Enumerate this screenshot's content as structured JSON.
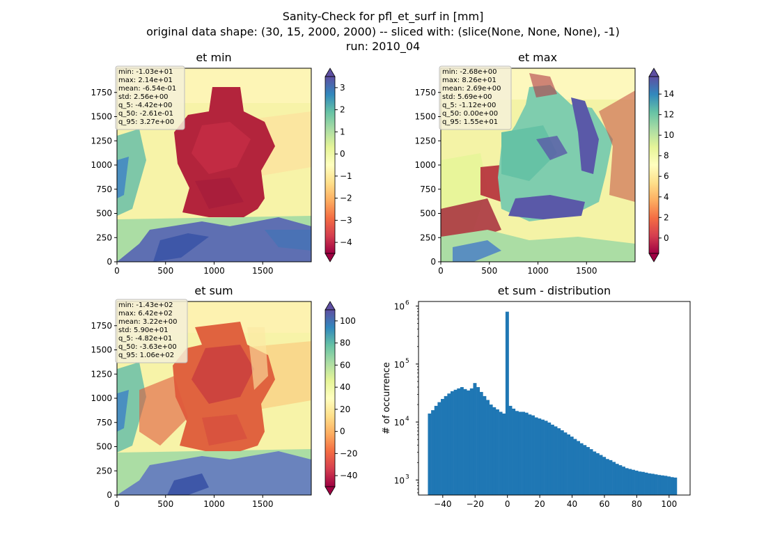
{
  "figure": {
    "title_lines": [
      "Sanity-Check for pfl_et_surf in [mm]",
      "original data shape: (30, 15, 2000, 2000) -- sliced with: (slice(None, None, None), -1)",
      "run: 2010_04"
    ]
  },
  "chart_data": [
    {
      "type": "heatmap",
      "title": "et min",
      "xlim": [
        0,
        2000
      ],
      "ylim": [
        0,
        2000
      ],
      "x_ticks": [
        "0",
        "500",
        "1000",
        "1500"
      ],
      "y_ticks": [
        "0",
        "250",
        "500",
        "750",
        "1000",
        "1250",
        "1500",
        "1750"
      ],
      "colormap": "Spectral",
      "colorbar": {
        "range": [
          -4.5,
          3.5
        ],
        "ticks": [
          "3",
          "2",
          "1",
          "0",
          "−1",
          "−2",
          "−3",
          "−4"
        ],
        "tick_values": [
          3,
          2,
          1,
          0,
          -1,
          -2,
          -3,
          -4
        ],
        "extend": "both"
      },
      "stats": [
        "min: -1.03e+01",
        "max: 2.14e+01",
        "mean: -6.54e-01",
        "std: 2.56e+00",
        "q_5: -4.42e+00",
        "q_50: -2.61e-01",
        "q_95: 3.27e+00"
      ]
    },
    {
      "type": "heatmap",
      "title": "et max",
      "xlim": [
        0,
        2000
      ],
      "ylim": [
        0,
        2000
      ],
      "x_ticks": [
        "0",
        "500",
        "1000",
        "1500"
      ],
      "y_ticks": [
        "0",
        "250",
        "500",
        "750",
        "1000",
        "1250",
        "1500",
        "1750"
      ],
      "colormap": "Spectral",
      "colorbar": {
        "range": [
          -1.5,
          15.7
        ],
        "ticks": [
          "14",
          "12",
          "10",
          "8",
          "6",
          "4",
          "2",
          "0"
        ],
        "tick_values": [
          14,
          12,
          10,
          8,
          6,
          4,
          2,
          0
        ],
        "extend": "both"
      },
      "stats": [
        "min: -2.68e+00",
        "max: 8.26e+01",
        "mean: 2.69e+00",
        "std: 5.69e+00",
        "q_5: -1.12e+00",
        "q_50: 0.00e+00",
        "q_95: 1.55e+01"
      ]
    },
    {
      "type": "heatmap",
      "title": "et sum",
      "xlim": [
        0,
        2000
      ],
      "ylim": [
        0,
        2000
      ],
      "x_ticks": [
        "0",
        "500",
        "1000",
        "1500"
      ],
      "y_ticks": [
        "0",
        "250",
        "500",
        "750",
        "1000",
        "1250",
        "1500",
        "1750"
      ],
      "colormap": "Spectral",
      "colorbar": {
        "range": [
          -50,
          110
        ],
        "ticks": [
          "100",
          "80",
          "60",
          "40",
          "20",
          "0",
          "−20",
          "−40"
        ],
        "tick_values": [
          100,
          80,
          60,
          40,
          20,
          0,
          -20,
          -40
        ],
        "extend": "both"
      },
      "stats": [
        "min: -1.43e+02",
        "max: 6.42e+02",
        "mean: 3.22e+00",
        "std: 5.90e+01",
        "q_5: -4.82e+01",
        "q_50: -3.63e+00",
        "q_95: 1.06e+02"
      ]
    },
    {
      "type": "bar",
      "title": "et sum - distribution",
      "xlabel": "",
      "ylabel": "# of occurrence",
      "xlim": [
        -55,
        113
      ],
      "ylog": true,
      "ylim": [
        550,
        1200000
      ],
      "x_ticks": [
        "−40",
        "−20",
        "0",
        "20",
        "40",
        "60",
        "80",
        "100"
      ],
      "x_tick_values": [
        -40,
        -20,
        0,
        20,
        40,
        60,
        80,
        100
      ],
      "y_ticks": [
        "10",
        "10",
        "10",
        "10"
      ],
      "y_tick_exponents": [
        "3",
        "4",
        "5",
        "6"
      ],
      "y_tick_values": [
        1000,
        10000,
        100000,
        1000000
      ],
      "bar_color": "#1f77b4",
      "bins": {
        "x": [
          -48.2,
          -46.2,
          -44.2,
          -42.2,
          -40.2,
          -38.2,
          -36.2,
          -34.2,
          -32.2,
          -30.2,
          -28.2,
          -26.2,
          -24.2,
          -22.2,
          -20.2,
          -18.2,
          -16.2,
          -14.2,
          -12.2,
          -10.2,
          -8.2,
          -6.2,
          -4.2,
          -2.2,
          -0.2,
          1.8,
          3.8,
          5.8,
          7.8,
          9.8,
          11.8,
          13.8,
          15.8,
          17.8,
          19.8,
          21.8,
          23.8,
          25.8,
          27.8,
          29.8,
          31.8,
          33.8,
          35.8,
          37.8,
          39.8,
          41.8,
          43.8,
          45.8,
          47.8,
          49.8,
          51.8,
          53.8,
          55.8,
          57.8,
          59.8,
          61.8,
          63.8,
          65.8,
          67.8,
          69.8,
          71.8,
          73.8,
          75.8,
          77.8,
          79.8,
          81.8,
          83.8,
          85.8,
          87.8,
          89.8,
          91.8,
          93.8,
          95.8,
          97.8,
          99.8,
          101.8,
          103.8
        ],
        "counts": [
          14000,
          16000,
          19000,
          22000,
          25000,
          28000,
          31000,
          34000,
          36000,
          38000,
          40000,
          37000,
          35000,
          38000,
          47000,
          40000,
          33000,
          28000,
          24000,
          20000,
          18000,
          16500,
          15000,
          14000,
          800000,
          19000,
          17000,
          15500,
          15000,
          15000,
          14500,
          13500,
          13000,
          12000,
          11500,
          11000,
          10500,
          9800,
          9000,
          8400,
          7800,
          7200,
          6600,
          6100,
          5600,
          5100,
          4700,
          4300,
          4000,
          3700,
          3400,
          3100,
          2900,
          2700,
          2500,
          2300,
          2200,
          2050,
          1900,
          1800,
          1700,
          1600,
          1550,
          1500,
          1450,
          1400,
          1380,
          1340,
          1300,
          1280,
          1250,
          1220,
          1200,
          1180,
          1150,
          1120,
          1100
        ]
      }
    }
  ]
}
